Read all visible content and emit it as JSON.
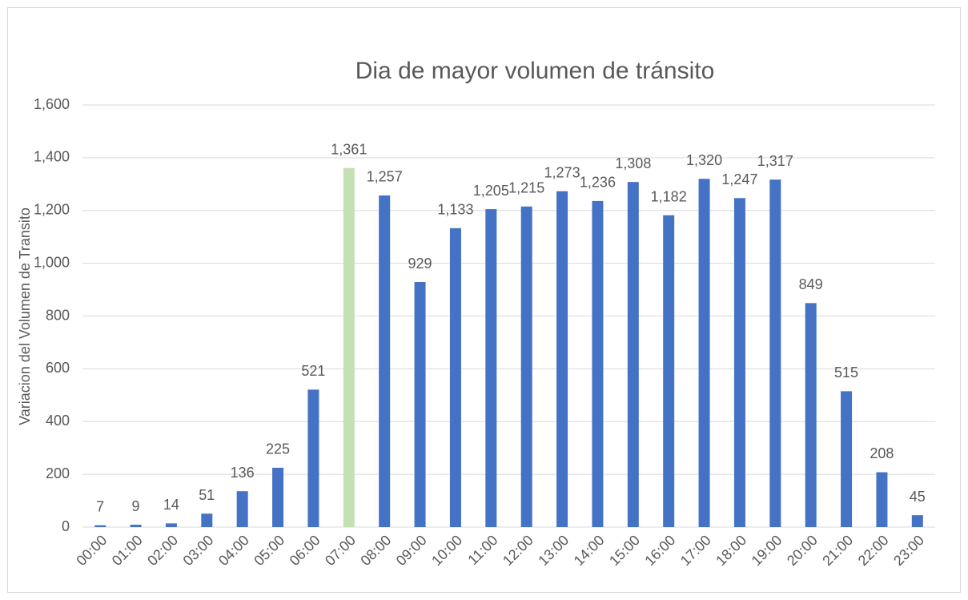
{
  "chart_data": {
    "type": "bar",
    "title": "Dia de mayor volumen de tránsito",
    "y_label": "Variacion del Volumen de Transito",
    "categories": [
      "00:00",
      "01:00",
      "02:00",
      "03:00",
      "04:00",
      "05:00",
      "06:00",
      "07:00",
      "08:00",
      "09:00",
      "10:00",
      "11:00",
      "12:00",
      "13:00",
      "14:00",
      "15:00",
      "16:00",
      "17:00",
      "18:00",
      "19:00",
      "20:00",
      "21:00",
      "22:00",
      "23:00"
    ],
    "values": [
      7,
      9,
      14,
      51,
      136,
      225,
      521,
      1361,
      1257,
      929,
      1133,
      1205,
      1215,
      1273,
      1236,
      1308,
      1182,
      1320,
      1247,
      1317,
      849,
      515,
      208,
      45
    ],
    "value_labels": [
      "7",
      "9",
      "14",
      "51",
      "136",
      "225",
      "521",
      "1,361",
      "1,257",
      "929",
      "1,133",
      "1,205",
      "1,215",
      "1,273",
      "1,236",
      "1,308",
      "1,182",
      "1,320",
      "1,247",
      "1,317",
      "849",
      "515",
      "208",
      "45"
    ],
    "colors": [
      "#4472c4",
      "#4472c4",
      "#4472c4",
      "#4472c4",
      "#4472c4",
      "#4472c4",
      "#4472c4",
      "#c5e0b4",
      "#4472c4",
      "#4472c4",
      "#4472c4",
      "#4472c4",
      "#4472c4",
      "#4472c4",
      "#4472c4",
      "#4472c4",
      "#4472c4",
      "#4472c4",
      "#4472c4",
      "#4472c4",
      "#4472c4",
      "#4472c4",
      "#4472c4",
      "#4472c4"
    ],
    "ylim": [
      0,
      1600
    ],
    "yticks": [
      0,
      200,
      400,
      600,
      800,
      {
        "value": 1000,
        "label": "1,000"
      },
      {
        "value": 1200,
        "label": "1,200"
      },
      {
        "value": 1400,
        "label": "1,400"
      },
      {
        "value": 1600,
        "label": "1,600"
      }
    ],
    "grid": true
  }
}
